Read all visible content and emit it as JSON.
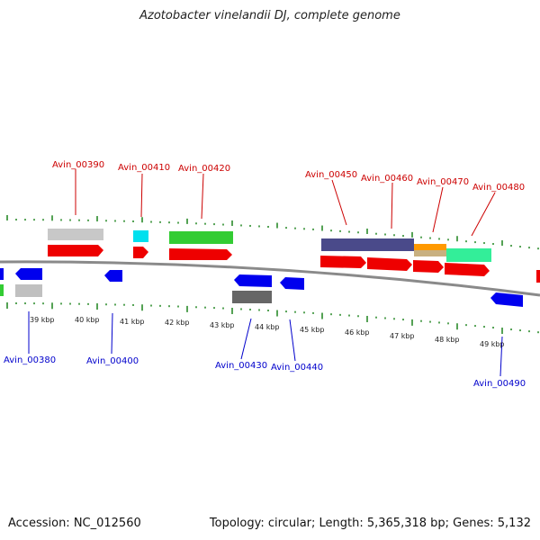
{
  "title": "Azotobacter vinelandii DJ, complete genome",
  "footer": {
    "accession": "Accession: NC_012560",
    "stats": "Topology: circular; Length: 5,365,318 bp; Genes: 5,132"
  },
  "colors": {
    "forward_label": "#cc0000",
    "reverse_label": "#0000cc",
    "tick": "#2a8a2a",
    "backbone": "#888888"
  },
  "scale": {
    "unit": "kbp",
    "ticks": [
      {
        "label": "39 kbp"
      },
      {
        "label": "40 kbp"
      },
      {
        "label": "41 kbp"
      },
      {
        "label": "42 kbp"
      },
      {
        "label": "43 kbp"
      },
      {
        "label": "44 kbp"
      },
      {
        "label": "45 kbp"
      },
      {
        "label": "46 kbp"
      },
      {
        "label": "47 kbp"
      },
      {
        "label": "48 kbp"
      },
      {
        "label": "49 kbp"
      }
    ]
  },
  "forward_labels": [
    {
      "name": "Avin_00390"
    },
    {
      "name": "Avin_00410"
    },
    {
      "name": "Avin_00420"
    },
    {
      "name": "Avin_00450"
    },
    {
      "name": "Avin_00460"
    },
    {
      "name": "Avin_00470"
    },
    {
      "name": "Avin_00480"
    }
  ],
  "reverse_labels": [
    {
      "name": "Avin_00380"
    },
    {
      "name": "Avin_00400"
    },
    {
      "name": "Avin_00430"
    },
    {
      "name": "Avin_00440"
    },
    {
      "name": "Avin_00490"
    }
  ]
}
